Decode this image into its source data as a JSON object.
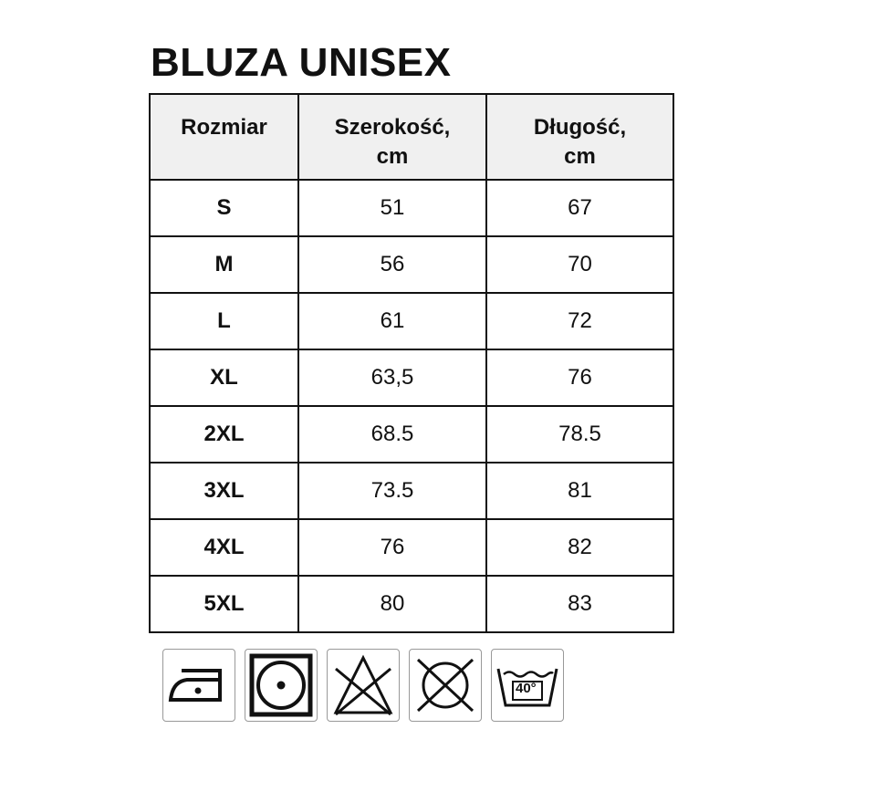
{
  "title": "BLUZA UNISEX",
  "table": {
    "headers": [
      "Rozmiar",
      "Szerokość,\ncm",
      "Długość,\ncm"
    ],
    "header_lines": [
      [
        "Rozmiar"
      ],
      [
        "Szerokość,",
        "cm"
      ],
      [
        "Długość,",
        "cm"
      ]
    ],
    "rows": [
      [
        "S",
        "51",
        "67"
      ],
      [
        "M",
        "56",
        "70"
      ],
      [
        "L",
        "61",
        "72"
      ],
      [
        "XL",
        "63,5",
        "76"
      ],
      [
        "2XL",
        "68.5",
        "78.5"
      ],
      [
        "3XL",
        "73.5",
        "81"
      ],
      [
        "4XL",
        "76",
        "82"
      ],
      [
        "5XL",
        "80",
        "83"
      ]
    ]
  },
  "care_icons": [
    {
      "name": "iron-low-heat-icon"
    },
    {
      "name": "tumble-dry-low-icon"
    },
    {
      "name": "do-not-bleach-icon"
    },
    {
      "name": "do-not-dry-clean-icon"
    },
    {
      "name": "wash-40-icon",
      "label": "40°"
    }
  ]
}
